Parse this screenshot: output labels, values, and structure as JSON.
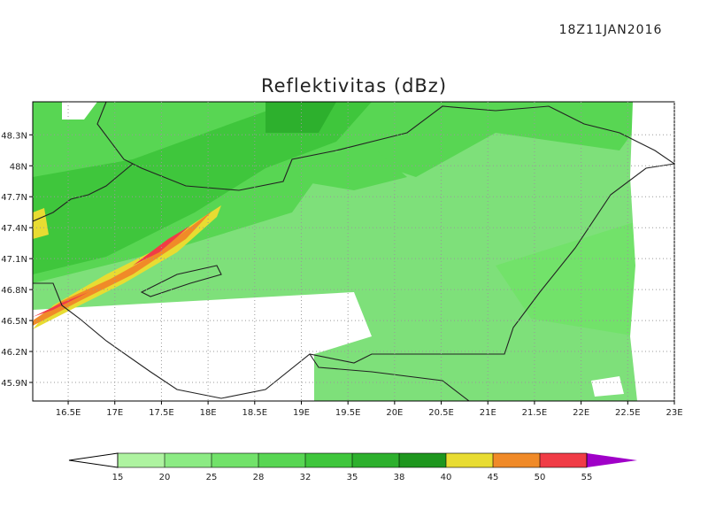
{
  "timestamp": "18Z11JAN2016",
  "title": "Reflektivitas (dBz)",
  "map": {
    "xlim": [
      16.12,
      23.0
    ],
    "ylim": [
      45.72,
      48.62
    ],
    "xticks": [
      {
        "value": 16.5,
        "label": "16.5E"
      },
      {
        "value": 17,
        "label": "17E"
      },
      {
        "value": 17.5,
        "label": "17.5E"
      },
      {
        "value": 18,
        "label": "18E"
      },
      {
        "value": 18.5,
        "label": "18.5E"
      },
      {
        "value": 19,
        "label": "19E"
      },
      {
        "value": 19.5,
        "label": "19.5E"
      },
      {
        "value": 20,
        "label": "20E"
      },
      {
        "value": 20.5,
        "label": "20.5E"
      },
      {
        "value": 21,
        "label": "21E"
      },
      {
        "value": 21.5,
        "label": "21.5E"
      },
      {
        "value": 22,
        "label": "22E"
      },
      {
        "value": 22.5,
        "label": "22.5E"
      },
      {
        "value": 23,
        "label": "23E"
      }
    ],
    "yticks": [
      {
        "value": 48.3,
        "label": "48.3N"
      },
      {
        "value": 48,
        "label": "48N"
      },
      {
        "value": 47.7,
        "label": "47.7N"
      },
      {
        "value": 47.4,
        "label": "47.4N"
      },
      {
        "value": 47.1,
        "label": "47.1N"
      },
      {
        "value": 46.8,
        "label": "46.8N"
      },
      {
        "value": 46.5,
        "label": "46.5N"
      },
      {
        "value": 46.2,
        "label": "46.2N"
      },
      {
        "value": 45.9,
        "label": "45.9N"
      }
    ]
  },
  "colorbar": {
    "levels": [
      15,
      20,
      25,
      28,
      32,
      35,
      38,
      40,
      45,
      50,
      55
    ],
    "colors": [
      "#ffffff",
      "#aef3a0",
      "#8ceb84",
      "#72e26a",
      "#58d653",
      "#3fc63c",
      "#2db02d",
      "#1e961e",
      "#e8dc32",
      "#f08a28",
      "#f03c46",
      "#a000c8"
    ]
  }
}
